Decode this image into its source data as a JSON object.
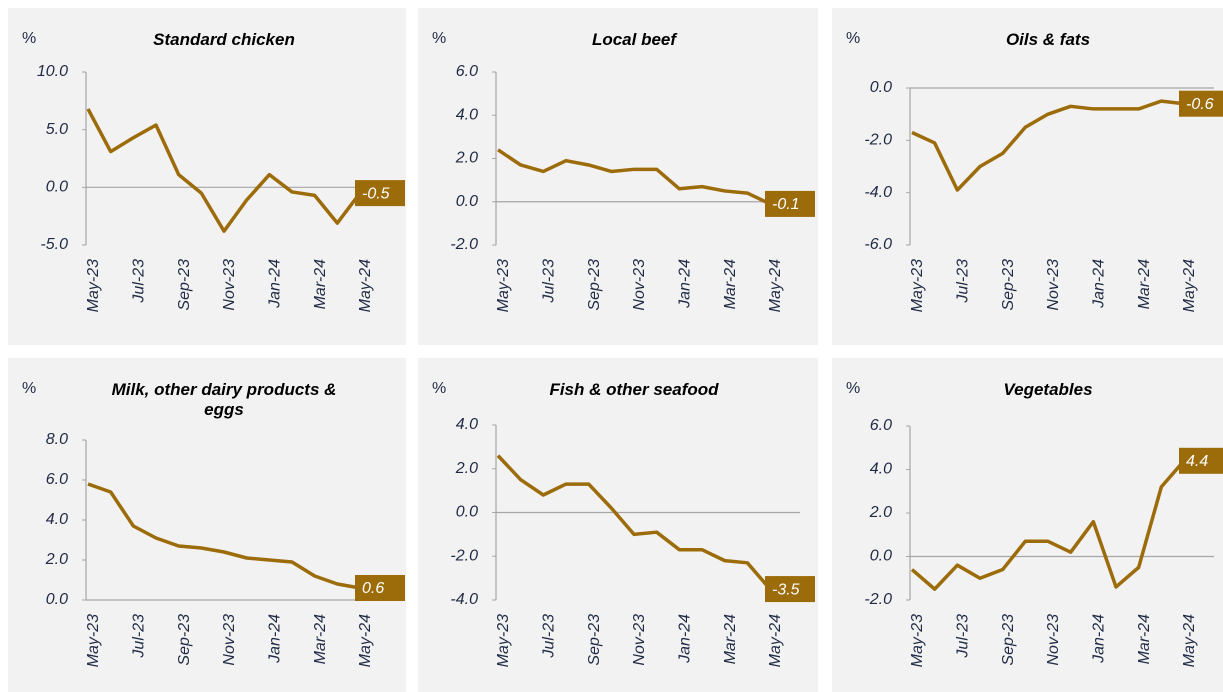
{
  "chart_data": [
    {
      "type": "line",
      "title": "Standard chicken",
      "y_label": "%",
      "categories": [
        "May-23",
        null,
        "Jul-23",
        null,
        "Sep-23",
        null,
        "Nov-23",
        null,
        "Jan-24",
        null,
        "Mar-24",
        null,
        "May-24"
      ],
      "series": [
        {
          "name": "Standard chicken",
          "color": "#9c6b0a",
          "values": [
            6.8,
            3.1,
            4.3,
            5.4,
            1.1,
            -0.5,
            -3.8,
            -1.1,
            1.1,
            -0.4,
            -0.7,
            -3.1,
            -0.5
          ]
        }
      ],
      "ylim": [
        -5,
        10
      ],
      "yticks": [
        {
          "value": -5,
          "label": "-5.0"
        },
        {
          "value": 0,
          "label": "0.0"
        },
        {
          "value": 5,
          "label": "5.0"
        },
        {
          "value": 10,
          "label": "10.0"
        }
      ]
    },
    {
      "type": "line",
      "title": "Local beef",
      "y_label": "%",
      "categories": [
        "May-23",
        null,
        "Jul-23",
        null,
        "Sep-23",
        null,
        "Nov-23",
        null,
        "Jan-24",
        null,
        "Mar-24",
        null,
        "May-24"
      ],
      "series": [
        {
          "name": "Local beef",
          "color": "#9c6b0a",
          "values": [
            2.4,
            1.7,
            1.4,
            1.9,
            1.7,
            1.4,
            1.5,
            1.5,
            0.6,
            0.7,
            0.5,
            0.4,
            -0.1
          ]
        }
      ],
      "ylim": [
        -2,
        6
      ],
      "yticks": [
        {
          "value": -2,
          "label": "-2.0"
        },
        {
          "value": 0,
          "label": "0.0"
        },
        {
          "value": 2,
          "label": "2.0"
        },
        {
          "value": 4,
          "label": "4.0"
        },
        {
          "value": 6,
          "label": "6.0"
        }
      ]
    },
    {
      "type": "line",
      "title": "Oils & fats",
      "y_label": "%",
      "categories": [
        "May-23",
        null,
        "Jul-23",
        null,
        "Sep-23",
        null,
        "Nov-23",
        null,
        "Jan-24",
        null,
        "Mar-24",
        null,
        "May-24"
      ],
      "series": [
        {
          "name": "Oils & fats",
          "color": "#9c6b0a",
          "values": [
            -1.7,
            -2.1,
            -3.9,
            -3.0,
            -2.5,
            -1.5,
            -1.0,
            -0.7,
            -0.8,
            -0.8,
            -0.8,
            -0.5,
            -0.6
          ]
        }
      ],
      "ylim": [
        -6,
        0
      ],
      "yticks": [
        {
          "value": -6,
          "label": "-6.0"
        },
        {
          "value": -4,
          "label": "-4.0"
        },
        {
          "value": -2,
          "label": "-2.0"
        },
        {
          "value": 0,
          "label": "0.0"
        }
      ]
    },
    {
      "type": "line",
      "title": "Milk, other dairy products & eggs",
      "y_label": "%",
      "categories": [
        "May-23",
        null,
        "Jul-23",
        null,
        "Sep-23",
        null,
        "Nov-23",
        null,
        "Jan-24",
        null,
        "Mar-24",
        null,
        "May-24"
      ],
      "series": [
        {
          "name": "Milk, other dairy products & eggs",
          "color": "#9c6b0a",
          "values": [
            5.8,
            5.4,
            3.7,
            3.1,
            2.7,
            2.6,
            2.4,
            2.1,
            2.0,
            1.9,
            1.2,
            0.8,
            0.6
          ]
        }
      ],
      "ylim": [
        0,
        8
      ],
      "yticks": [
        {
          "value": 0,
          "label": "0.0"
        },
        {
          "value": 2,
          "label": "2.0"
        },
        {
          "value": 4,
          "label": "4.0"
        },
        {
          "value": 6,
          "label": "6.0"
        },
        {
          "value": 8,
          "label": "8.0"
        }
      ]
    },
    {
      "type": "line",
      "title": "Fish & other seafood",
      "y_label": "%",
      "categories": [
        "May-23",
        null,
        "Jul-23",
        null,
        "Sep-23",
        null,
        "Nov-23",
        null,
        "Jan-24",
        null,
        "Mar-24",
        null,
        "May-24"
      ],
      "series": [
        {
          "name": "Fish & other seafood",
          "color": "#9c6b0a",
          "values": [
            2.6,
            1.5,
            0.8,
            1.3,
            1.3,
            0.2,
            -1.0,
            -0.9,
            -1.7,
            -1.7,
            -2.2,
            -2.3,
            -3.5
          ]
        }
      ],
      "ylim": [
        -4,
        4
      ],
      "yticks": [
        {
          "value": -4,
          "label": "-4.0"
        },
        {
          "value": -2,
          "label": "-2.0"
        },
        {
          "value": 0,
          "label": "0.0"
        },
        {
          "value": 2,
          "label": "2.0"
        },
        {
          "value": 4,
          "label": "4.0"
        }
      ]
    },
    {
      "type": "line",
      "title": "Vegetables",
      "y_label": "%",
      "categories": [
        "May-23",
        null,
        "Jul-23",
        null,
        "Sep-23",
        null,
        "Nov-23",
        null,
        "Jan-24",
        null,
        "Mar-24",
        null,
        "May-24"
      ],
      "series": [
        {
          "name": "Vegetables",
          "color": "#9c6b0a",
          "values": [
            -0.6,
            -1.5,
            -0.4,
            -1.0,
            -0.6,
            0.7,
            0.7,
            0.2,
            1.6,
            -1.4,
            -0.5,
            3.2,
            4.4
          ]
        }
      ],
      "ylim": [
        -2,
        6
      ],
      "yticks": [
        {
          "value": -2,
          "label": "-2.0"
        },
        {
          "value": 0,
          "label": "0.0"
        },
        {
          "value": 2,
          "label": "2.0"
        },
        {
          "value": 4,
          "label": "4.0"
        },
        {
          "value": 6,
          "label": "6.0"
        }
      ]
    }
  ]
}
